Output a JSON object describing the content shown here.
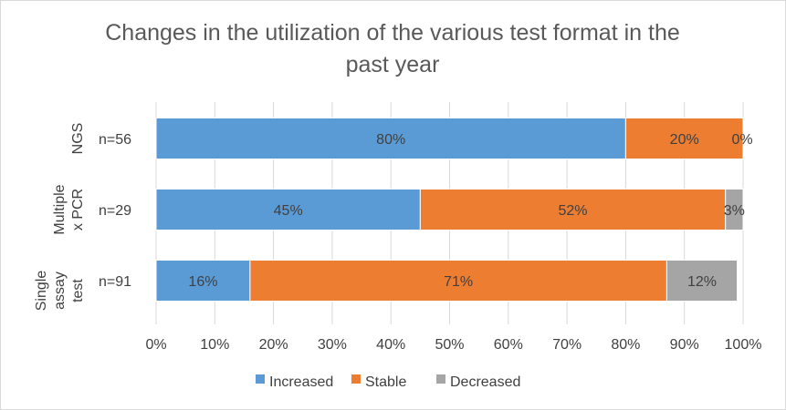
{
  "chart_data": {
    "type": "bar",
    "orientation": "horizontal",
    "stacked": "100%",
    "title": [
      "Changes in the utilization of the various test format in the",
      "past year"
    ],
    "categories": [
      {
        "group": [
          "NGS"
        ],
        "n_label": "n=56"
      },
      {
        "group": [
          "Multiple",
          "x PCR"
        ],
        "n_label": "n=29"
      },
      {
        "group": [
          "Single",
          "assay",
          "test"
        ],
        "n_label": "n=91"
      }
    ],
    "series": [
      {
        "name": "Increased",
        "color": "#5b9bd5",
        "values": [
          80,
          45,
          16
        ]
      },
      {
        "name": "Stable",
        "color": "#ed7d31",
        "values": [
          20,
          52,
          71
        ]
      },
      {
        "name": "Decreased",
        "color": "#a5a5a5",
        "values": [
          0,
          3,
          12
        ]
      }
    ],
    "data_labels": [
      [
        "80%",
        "20%",
        "0%"
      ],
      [
        "45%",
        "52%",
        "3%"
      ],
      [
        "16%",
        "71%",
        "12%"
      ]
    ],
    "xlim": [
      0,
      100
    ],
    "x_ticks": [
      "0%",
      "10%",
      "20%",
      "30%",
      "40%",
      "50%",
      "60%",
      "70%",
      "80%",
      "90%",
      "100%"
    ],
    "grid": "vertical",
    "legend_position": "bottom"
  }
}
